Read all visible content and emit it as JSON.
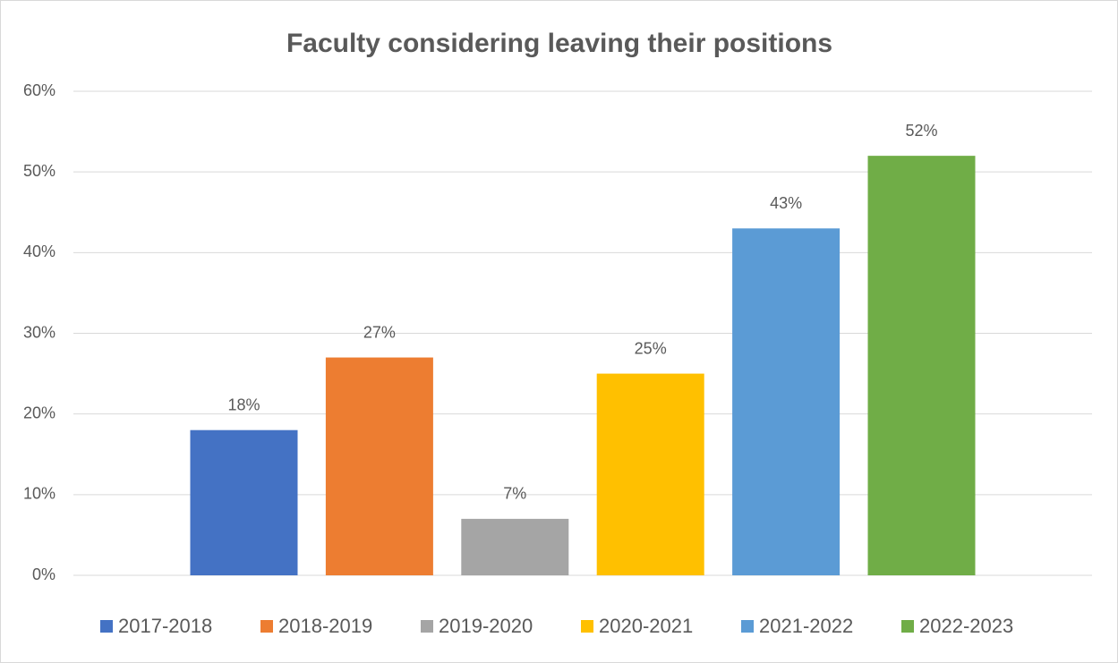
{
  "chart_data": {
    "type": "bar",
    "title": "Faculty considering leaving their positions",
    "categories": [
      null
    ],
    "series": [
      {
        "name": "2017-2018",
        "color": "#4472c4",
        "values": [
          18
        ],
        "value_labels": [
          "18%"
        ]
      },
      {
        "name": "2018-2019",
        "color": "#ed7d31",
        "values": [
          27
        ],
        "value_labels": [
          "27%"
        ]
      },
      {
        "name": "2019-2020",
        "color": "#a5a5a5",
        "values": [
          7
        ],
        "value_labels": [
          "7%"
        ]
      },
      {
        "name": "2020-2021",
        "color": "#ffc000",
        "values": [
          25
        ],
        "value_labels": [
          "25%"
        ]
      },
      {
        "name": "2021-2022",
        "color": "#5b9bd5",
        "values": [
          43
        ],
        "value_labels": [
          "43%"
        ]
      },
      {
        "name": "2022-2023",
        "color": "#70ad47",
        "values": [
          52
        ],
        "value_labels": [
          "52%"
        ]
      }
    ],
    "ylim": [
      0,
      60
    ],
    "yticks": [
      {
        "value": 0,
        "label": "0%"
      },
      {
        "value": 10,
        "label": "10%"
      },
      {
        "value": 20,
        "label": "20%"
      },
      {
        "value": 30,
        "label": "30%"
      },
      {
        "value": 40,
        "label": "40%"
      },
      {
        "value": 50,
        "label": "50%"
      },
      {
        "value": 60,
        "label": "60%"
      }
    ],
    "grid": true,
    "legend": "bottom"
  }
}
